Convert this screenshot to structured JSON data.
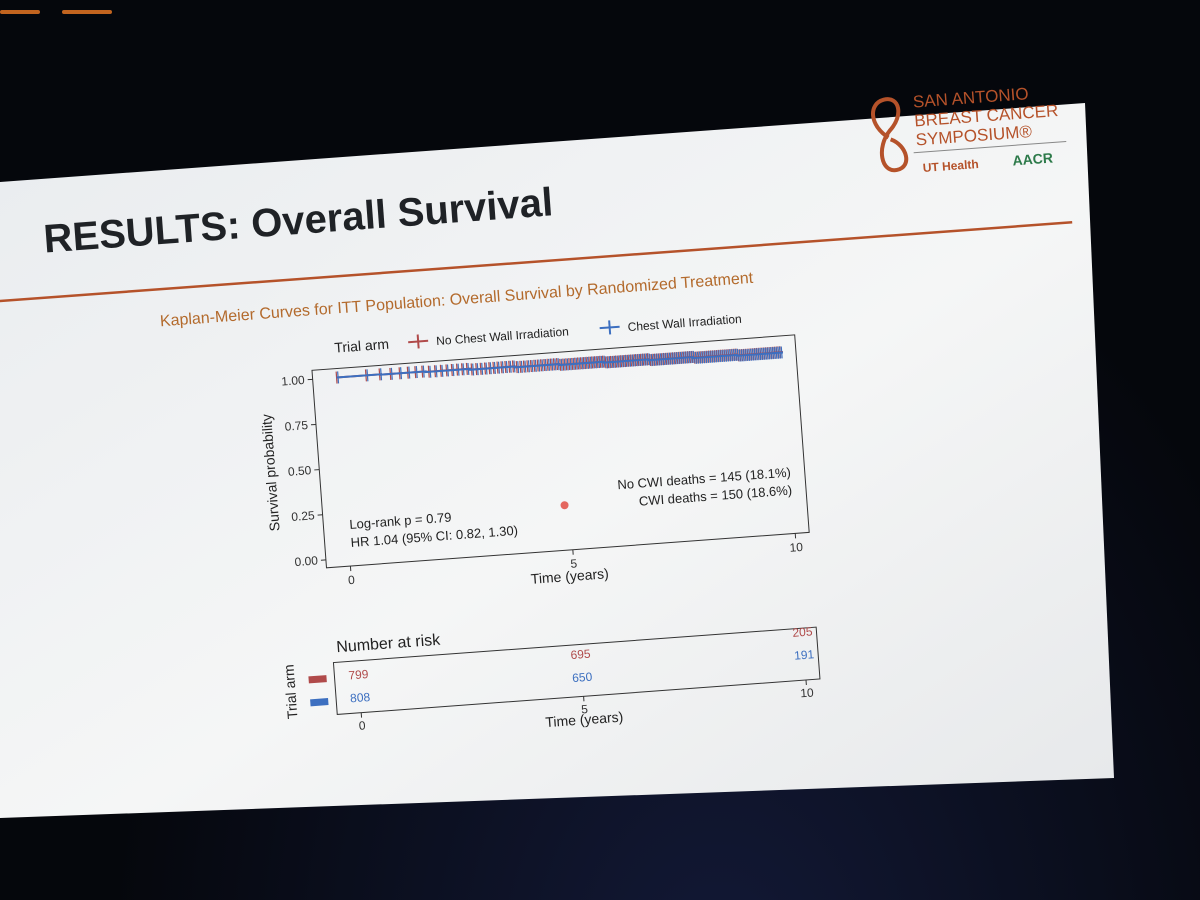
{
  "slide": {
    "title": "RESULTS: Overall Survival",
    "subtitle": "Kaplan-Meier Curves for ITT Population: Overall Survival by Randomized Treatment",
    "logo": {
      "line1": "SAN ANTONIO",
      "line2": "BREAST CANCER",
      "line3": "SYMPOSIUM®",
      "partner1": "UT Health",
      "partner2": "AACR"
    },
    "colors": {
      "accent": "#b5522a",
      "title": "#1f2226",
      "subtitle": "#b36a2c",
      "no_cwi": "#b04a4a",
      "cwi": "#3c6fc0"
    }
  },
  "chart_data": [
    {
      "type": "line",
      "title": "",
      "xlabel": "Time (years)",
      "ylabel": "Survival probability",
      "xlim": [
        0,
        10
      ],
      "ylim": [
        0,
        1
      ],
      "x_ticks": [
        "0",
        "5",
        "10"
      ],
      "y_ticks": [
        "0.00",
        "0.25",
        "0.50",
        "0.75",
        "1.00"
      ],
      "legend": {
        "title": "Trial arm",
        "placement": "top",
        "entries": [
          "No Chest Wall Irradiation",
          "Chest Wall Irradiation"
        ]
      },
      "series": [
        {
          "name": "No Chest Wall Irradiation",
          "x": [
            0,
            1,
            2,
            3,
            4,
            5,
            6,
            7,
            8,
            9,
            10
          ],
          "y": [
            1.0,
            0.998,
            0.995,
            0.99,
            0.985,
            0.98,
            0.975,
            0.97,
            0.965,
            0.96,
            0.955
          ]
        },
        {
          "name": "Chest Wall Irradiation",
          "x": [
            0,
            1,
            2,
            3,
            4,
            5,
            6,
            7,
            8,
            9,
            10
          ],
          "y": [
            1.0,
            0.998,
            0.994,
            0.989,
            0.984,
            0.979,
            0.974,
            0.969,
            0.963,
            0.958,
            0.952
          ]
        }
      ],
      "annotations": {
        "left_line1": "Log-rank p = 0.79",
        "left_line2": "HR 1.04 (95% CI: 0.82, 1.30)",
        "right_line1": "No CWI deaths = 145 (18.1%)",
        "right_line2": "CWI deaths = 150 (18.6%)"
      }
    },
    {
      "type": "table",
      "title": "Number at risk",
      "ylabel": "Trial arm",
      "xlabel": "Time (years)",
      "x_ticks": [
        "0",
        "5",
        "10"
      ],
      "rows": [
        {
          "name": "No Chest Wall Irradiation",
          "values": [
            "799",
            "695",
            "205"
          ]
        },
        {
          "name": "Chest Wall Irradiation",
          "values": [
            "808",
            "650",
            "191"
          ]
        }
      ]
    }
  ]
}
